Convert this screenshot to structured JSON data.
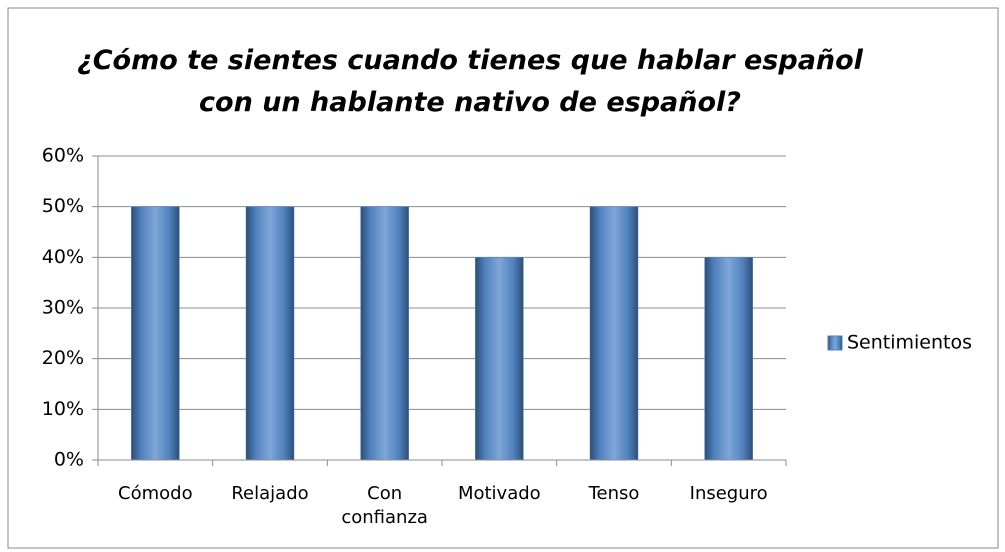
{
  "chart_data": {
    "type": "bar",
    "title": "¿Cómo te sientes cuando tienes que hablar español con un hablante nativo de español?",
    "categories": [
      "Cómodo",
      "Relajado",
      "Con confianza",
      "Motivado",
      "Tenso",
      "Inseguro"
    ],
    "series": [
      {
        "name": "Sentimientos",
        "color": "#4f81bd",
        "values": [
          50,
          50,
          50,
          40,
          50,
          40
        ]
      }
    ],
    "ylim": [
      0,
      60
    ],
    "yticks": [
      {
        "value": 0,
        "label": "0%"
      },
      {
        "value": 10,
        "label": "10%"
      },
      {
        "value": 20,
        "label": "20%"
      },
      {
        "value": 30,
        "label": "30%"
      },
      {
        "value": 40,
        "label": "40%"
      },
      {
        "value": 50,
        "label": "50%"
      },
      {
        "value": 60,
        "label": "60%"
      }
    ],
    "grid": true,
    "legend": "right"
  }
}
